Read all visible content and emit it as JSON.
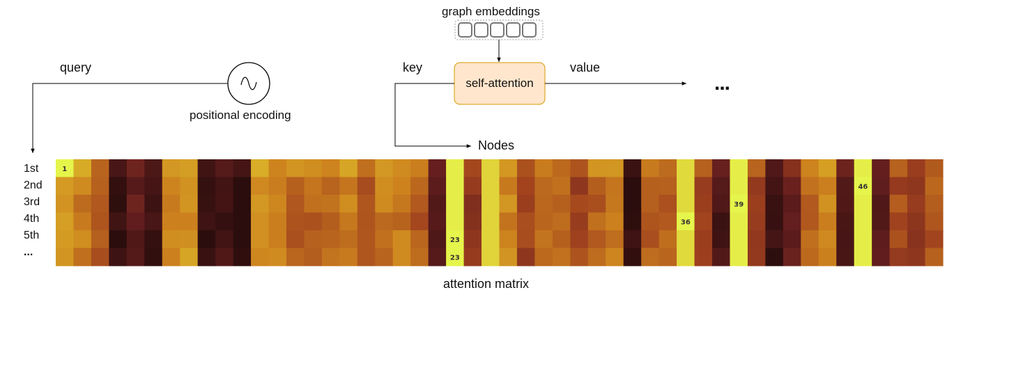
{
  "labels": {
    "graph_embeddings": "graph embeddings",
    "query": "query",
    "key": "key",
    "value": "value",
    "self_attention": "self-attention",
    "positional_encoding": "positional encoding",
    "nodes": "Nodes",
    "ellipsis": "...",
    "attention_matrix": "attention matrix"
  },
  "row_labels": [
    "1st",
    "2nd",
    "3rd",
    "4th",
    "5th",
    "..."
  ],
  "highlights": [
    {
      "row": 0,
      "col": 0,
      "text": "1"
    },
    {
      "row": 4,
      "col": 22,
      "text": "23"
    },
    {
      "row": 5,
      "col": 22,
      "text": "23"
    },
    {
      "row": 3,
      "col": 35,
      "text": "36"
    },
    {
      "row": 2,
      "col": 38,
      "text": "39"
    },
    {
      "row": 1,
      "col": 45,
      "text": "46"
    }
  ],
  "colors": {
    "self_attention_fill": "#ffe6cc",
    "self_attention_stroke": "#d79b00",
    "heat_low": "#2b0d0d",
    "heat_mid": "#c7741a",
    "heat_high": "#e7f74a"
  }
}
